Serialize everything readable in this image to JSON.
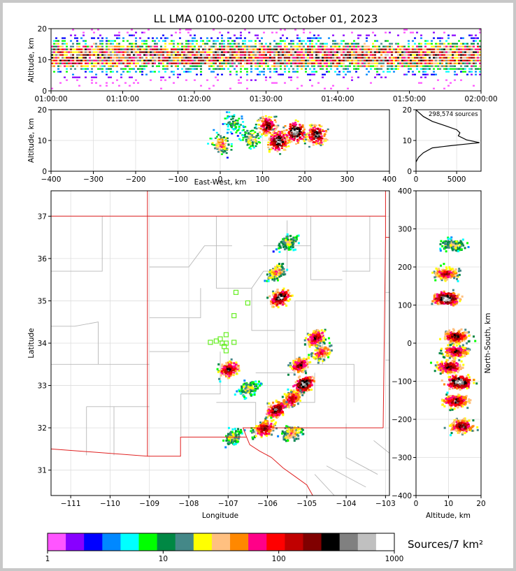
{
  "title": "LL LMA 0100-0200 UTC October 01, 2023",
  "colorbar": {
    "label": "Sources/7 km²",
    "ticks": [
      "1",
      "10",
      "100",
      "1000"
    ],
    "colors": [
      "#ff55ff",
      "#8800ff",
      "#0000ff",
      "#0088ff",
      "#00ffff",
      "#00ff00",
      "#008844",
      "#448888",
      "#ffff00",
      "#ffc080",
      "#ff8800",
      "#ff0088",
      "#ff0000",
      "#c00000",
      "#800000",
      "#000000",
      "#808080",
      "#c0c0c0",
      "#ffffff"
    ]
  },
  "chart_data": [
    {
      "panel": "altitude-time",
      "type": "heatmap",
      "ylabel": "Altitude, km",
      "ylim": [
        0,
        20
      ],
      "yticks": [
        "0",
        "10",
        "20"
      ],
      "xticks": [
        "01:00:00",
        "01:10:00",
        "01:20:00",
        "01:30:00",
        "01:40:00",
        "01:50:00",
        "02:00:00"
      ],
      "description_values": {
        "source_band_min_km": 2,
        "source_band_max_km": 20,
        "peak_km": 10
      }
    },
    {
      "panel": "east-west-altitude",
      "type": "heatmap",
      "xlabel": "East-West, km",
      "ylabel": "Altitude, km",
      "xlim": [
        -400,
        400
      ],
      "ylim": [
        0,
        20
      ],
      "xticks": [
        "−400",
        "−300",
        "−200",
        "−100",
        "0",
        "100",
        "200",
        "300",
        "400"
      ],
      "yticks": [
        "0",
        "10",
        "20"
      ],
      "cells": [
        {
          "x": 0,
          "alt": 9,
          "intensity": 0.6
        },
        {
          "x": 30,
          "alt": 16,
          "intensity": 0.4
        },
        {
          "x": 70,
          "alt": 11,
          "intensity": 0.5
        },
        {
          "x": 110,
          "alt": 15,
          "intensity": 0.85
        },
        {
          "x": 135,
          "alt": 10,
          "intensity": 0.95
        },
        {
          "x": 175,
          "alt": 13,
          "intensity": 1.0
        },
        {
          "x": 225,
          "alt": 12,
          "intensity": 0.9
        }
      ]
    },
    {
      "panel": "altitude-histogram",
      "type": "line",
      "annotation": "298,574 sources",
      "xlim": [
        0,
        8000
      ],
      "ylim": [
        0,
        20
      ],
      "xticks": [
        "0",
        "5000"
      ],
      "yticks": [
        "0",
        "10",
        "20"
      ],
      "x": [
        0,
        300,
        900,
        2000,
        4200,
        6000,
        7800,
        6200,
        5200,
        5400,
        5000,
        3600,
        2000,
        900,
        300,
        0
      ],
      "y": [
        3,
        4.5,
        6,
        7.6,
        8.3,
        8.8,
        9.3,
        10.2,
        11.5,
        12.5,
        13.5,
        14.8,
        16.2,
        17.8,
        19.2,
        20
      ]
    },
    {
      "panel": "plan-view",
      "type": "heatmap",
      "xlabel": "Longitude",
      "ylabel": "Latitude",
      "xlim": [
        -111.5,
        -102.9
      ],
      "ylim": [
        30.4,
        37.6
      ],
      "xticks": [
        "−111",
        "−110",
        "−109",
        "−108",
        "−107",
        "−106",
        "−105",
        "−104",
        "−103"
      ],
      "yticks": [
        "31",
        "32",
        "33",
        "34",
        "35",
        "36",
        "37"
      ],
      "stations": [
        {
          "lon": -106.8,
          "lat": 35.2
        },
        {
          "lon": -106.5,
          "lat": 34.95
        },
        {
          "lon": -106.85,
          "lat": 34.65
        },
        {
          "lon": -107.05,
          "lat": 34.2
        },
        {
          "lon": -107.2,
          "lat": 34.1
        },
        {
          "lon": -107.3,
          "lat": 34.05
        },
        {
          "lon": -107.45,
          "lat": 34.02
        },
        {
          "lon": -107.15,
          "lat": 34.0
        },
        {
          "lon": -107.05,
          "lat": 34.0
        },
        {
          "lon": -106.85,
          "lat": 34.02
        },
        {
          "lon": -107.1,
          "lat": 33.92
        },
        {
          "lon": -107.05,
          "lat": 33.82
        }
      ],
      "cells": [
        {
          "lon": -105.5,
          "lat": 36.4,
          "intensity": 0.5
        },
        {
          "lon": -105.8,
          "lat": 35.7,
          "intensity": 0.6
        },
        {
          "lon": -105.7,
          "lat": 35.1,
          "intensity": 0.95
        },
        {
          "lon": -104.8,
          "lat": 34.15,
          "intensity": 0.8
        },
        {
          "lon": -104.65,
          "lat": 33.8,
          "intensity": 0.7
        },
        {
          "lon": -105.2,
          "lat": 33.5,
          "intensity": 0.8
        },
        {
          "lon": -105.1,
          "lat": 33.05,
          "intensity": 1.0
        },
        {
          "lon": -105.4,
          "lat": 32.7,
          "intensity": 0.8
        },
        {
          "lon": -107.0,
          "lat": 33.4,
          "intensity": 0.85
        },
        {
          "lon": -106.5,
          "lat": 32.95,
          "intensity": 0.5
        },
        {
          "lon": -105.8,
          "lat": 32.45,
          "intensity": 0.9
        },
        {
          "lon": -106.1,
          "lat": 32.0,
          "intensity": 0.85
        },
        {
          "lon": -105.4,
          "lat": 31.9,
          "intensity": 0.6
        },
        {
          "lon": -106.9,
          "lat": 31.8,
          "intensity": 0.5
        }
      ]
    },
    {
      "panel": "north-south-altitude",
      "type": "heatmap",
      "xlabel": "Altitude, km",
      "ylabel": "North-South, km",
      "xlim": [
        0,
        20
      ],
      "ylim": [
        -400,
        400
      ],
      "xticks": [
        "0",
        "10",
        "20"
      ],
      "yticks": [
        "400",
        "300",
        "200",
        "100",
        "0",
        "−100",
        "−200",
        "−300",
        "−400"
      ],
      "cells": [
        {
          "alt": 11,
          "ns": 260,
          "intensity": 0.5
        },
        {
          "alt": 9,
          "ns": 185,
          "intensity": 0.75
        },
        {
          "alt": 9,
          "ns": 120,
          "intensity": 1.0
        },
        {
          "alt": 12,
          "ns": 20,
          "intensity": 0.85
        },
        {
          "alt": 12,
          "ns": -20,
          "intensity": 0.8
        },
        {
          "alt": 10,
          "ns": -60,
          "intensity": 0.85
        },
        {
          "alt": 13,
          "ns": -100,
          "intensity": 1.0
        },
        {
          "alt": 12,
          "ns": -150,
          "intensity": 0.85
        },
        {
          "alt": 14,
          "ns": -215,
          "intensity": 0.85
        }
      ]
    }
  ]
}
